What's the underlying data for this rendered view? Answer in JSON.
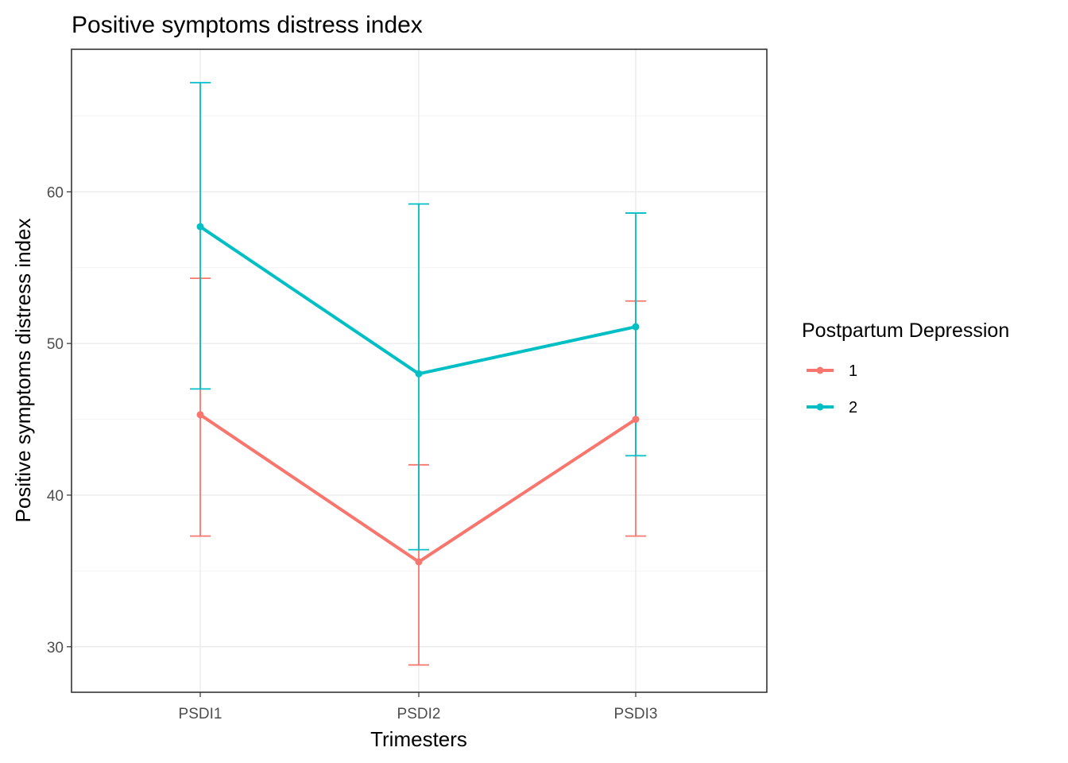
{
  "chart_data": {
    "type": "line",
    "title": "Positive symptoms distress index",
    "xlabel": "Trimesters",
    "ylabel": "Positive symptoms distress index",
    "categories": [
      "PSDI1",
      "PSDI2",
      "PSDI3"
    ],
    "ylim": [
      27,
      69.4
    ],
    "yticks": [
      30,
      40,
      50,
      60
    ],
    "grid": true,
    "legend": {
      "title": "Postpartum Depression",
      "position": "right"
    },
    "series": [
      {
        "name": "1",
        "color": "#F8766D",
        "values": [
          45.3,
          35.6,
          45.0
        ],
        "lower": [
          37.3,
          28.8,
          37.3
        ],
        "upper": [
          54.3,
          42.0,
          52.8
        ]
      },
      {
        "name": "2",
        "color": "#00BFC4",
        "values": [
          57.7,
          48.0,
          51.1
        ],
        "lower": [
          47.0,
          36.4,
          42.6
        ],
        "upper": [
          67.2,
          59.2,
          58.6
        ]
      }
    ]
  }
}
